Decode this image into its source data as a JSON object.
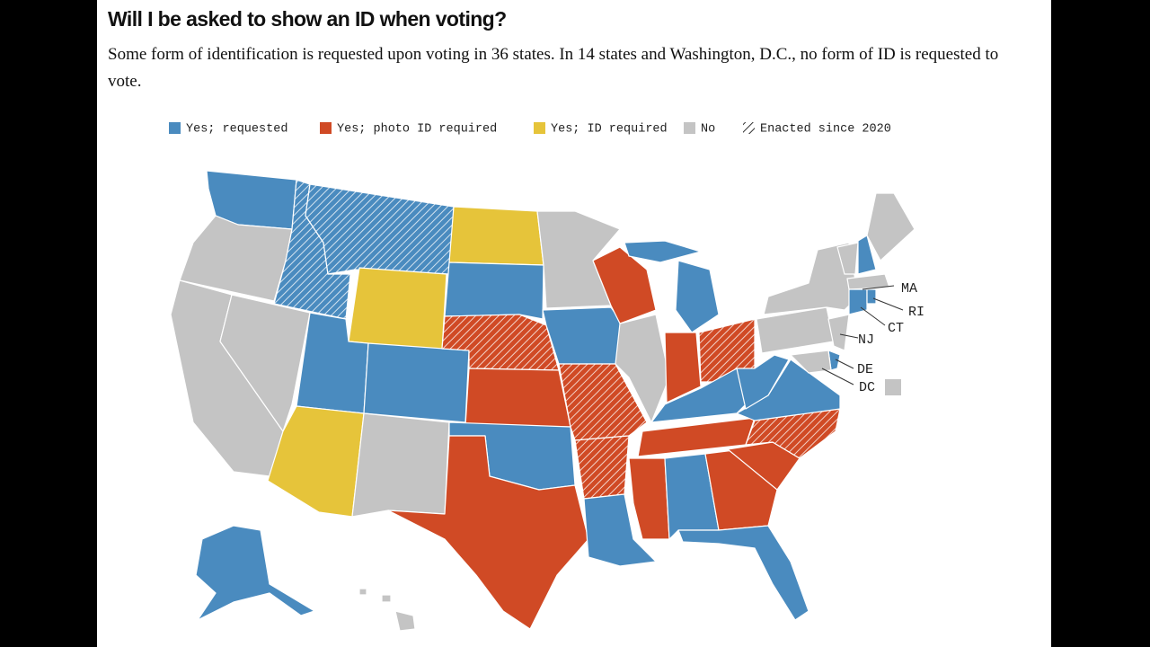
{
  "header": {
    "title": "Will I be asked to show an ID when voting?",
    "subtitle": "Some form of identification is requested upon voting in 36 states. In 14 states and Washington, D.C., no form of ID is requested to vote."
  },
  "legend": {
    "items": [
      {
        "label": "Yes; requested",
        "color": "#4a8bbf"
      },
      {
        "label": "Yes; photo ID required",
        "color": "#d04a25"
      },
      {
        "label": "Yes; ID required",
        "color": "#e6c43a"
      },
      {
        "label": "No",
        "color": "#c4c4c4"
      },
      {
        "label": "Enacted since 2020",
        "color": "#333333",
        "hatched": true
      }
    ]
  },
  "map": {
    "labels": [
      "MA",
      "RI",
      "CT",
      "NJ",
      "DE",
      "DC"
    ]
  }
}
